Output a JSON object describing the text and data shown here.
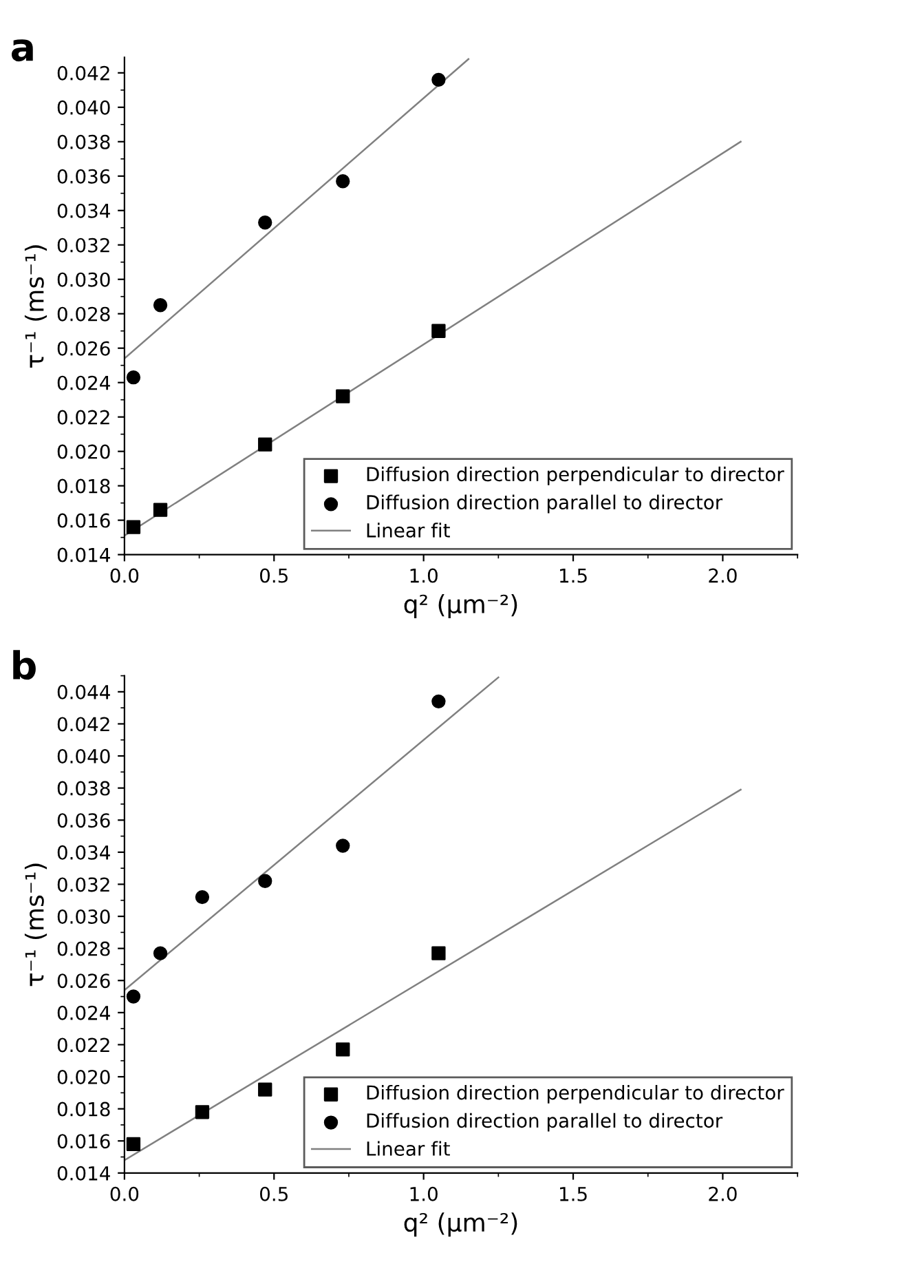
{
  "chart_data": [
    {
      "type": "scatter",
      "title": "a",
      "xlabel": "q² (μm⁻²)",
      "ylabel": "τ⁻¹ (ms⁻¹)",
      "xlim": [
        0,
        2.25
      ],
      "ylim": [
        0.014,
        0.0429
      ],
      "xticks": [
        {
          "value": 0,
          "label": "0.0"
        },
        {
          "value": 0.5,
          "label": "0.5"
        },
        {
          "value": 1,
          "label": "1.0"
        },
        {
          "value": 1.5,
          "label": "1.5"
        },
        {
          "value": 2,
          "label": "2.0"
        }
      ],
      "yticks": [
        {
          "value": 0.014,
          "label": "0.014"
        },
        {
          "value": 0.016,
          "label": "0.016"
        },
        {
          "value": 0.018,
          "label": "0.018"
        },
        {
          "value": 0.02,
          "label": "0.020"
        },
        {
          "value": 0.022,
          "label": "0.022"
        },
        {
          "value": 0.024,
          "label": "0.024"
        },
        {
          "value": 0.026,
          "label": "0.026"
        },
        {
          "value": 0.028,
          "label": "0.028"
        },
        {
          "value": 0.03,
          "label": "0.030"
        },
        {
          "value": 0.032,
          "label": "0.032"
        },
        {
          "value": 0.034,
          "label": "0.034"
        },
        {
          "value": 0.036,
          "label": "0.036"
        },
        {
          "value": 0.038,
          "label": "0.038"
        },
        {
          "value": 0.04,
          "label": "0.040"
        },
        {
          "value": 0.042,
          "label": "0.042"
        }
      ],
      "grid": false,
      "legend": "bottom right",
      "series": [
        {
          "name": "Diffusion direction perpendicular to director",
          "color": "#000000",
          "marker": "square",
          "x": [
            0.03,
            0.12,
            0.47,
            0.73,
            1.05
          ],
          "values": [
            0.0156,
            0.0166,
            0.0204,
            0.0232,
            0.027
          ]
        },
        {
          "name": "Diffusion direction parallel to director",
          "color": "#000000",
          "marker": "circle",
          "x": [
            0.03,
            0.12,
            0.47,
            0.73,
            1.05
          ],
          "values": [
            0.0243,
            0.0285,
            0.0333,
            0.0357,
            0.0416
          ]
        },
        {
          "name": "Linear fit",
          "type": "line",
          "color": "#808080",
          "marker": "none",
          "line_style": "solid",
          "x": [
            0,
            2.06
          ],
          "values": [
            0.0151,
            0.038
          ]
        },
        {
          "type": "line",
          "color": "#808080",
          "marker": "none",
          "line_style": "solid",
          "x": [
            0,
            1.15
          ],
          "values": [
            0.0254,
            0.0428
          ]
        }
      ]
    },
    {
      "type": "scatter",
      "title": "b",
      "xlabel": "q² (μm⁻²)",
      "ylabel": "τ⁻¹ (ms⁻¹)",
      "xlim": [
        0,
        2.25
      ],
      "ylim": [
        0.014,
        0.045
      ],
      "xticks": [
        {
          "value": 0,
          "label": "0.0"
        },
        {
          "value": 0.5,
          "label": "0.5"
        },
        {
          "value": 1,
          "label": "1.0"
        },
        {
          "value": 1.5,
          "label": "1.5"
        },
        {
          "value": 2,
          "label": "2.0"
        }
      ],
      "yticks": [
        {
          "value": 0.014,
          "label": "0.014"
        },
        {
          "value": 0.016,
          "label": "0.016"
        },
        {
          "value": 0.018,
          "label": "0.018"
        },
        {
          "value": 0.02,
          "label": "0.020"
        },
        {
          "value": 0.022,
          "label": "0.022"
        },
        {
          "value": 0.024,
          "label": "0.024"
        },
        {
          "value": 0.026,
          "label": "0.026"
        },
        {
          "value": 0.028,
          "label": "0.028"
        },
        {
          "value": 0.03,
          "label": "0.030"
        },
        {
          "value": 0.032,
          "label": "0.032"
        },
        {
          "value": 0.034,
          "label": "0.034"
        },
        {
          "value": 0.036,
          "label": "0.036"
        },
        {
          "value": 0.038,
          "label": "0.038"
        },
        {
          "value": 0.04,
          "label": "0.040"
        },
        {
          "value": 0.042,
          "label": "0.042"
        },
        {
          "value": 0.044,
          "label": "0.044"
        }
      ],
      "grid": false,
      "legend": "bottom right",
      "series": [
        {
          "name": "Diffusion direction perpendicular to director",
          "color": "#000000",
          "marker": "square",
          "x": [
            0.03,
            0.26,
            0.47,
            0.73,
            1.05
          ],
          "values": [
            0.0158,
            0.0178,
            0.0192,
            0.0217,
            0.0277
          ]
        },
        {
          "name": "Diffusion direction parallel to director",
          "color": "#000000",
          "marker": "circle",
          "x": [
            0.03,
            0.12,
            0.26,
            0.47,
            0.73,
            1.05
          ],
          "values": [
            0.025,
            0.0277,
            0.0312,
            0.0322,
            0.0344,
            0.0434
          ]
        },
        {
          "name": "Linear fit",
          "type": "line",
          "color": "#808080",
          "marker": "none",
          "line_style": "solid",
          "x": [
            0,
            2.06
          ],
          "values": [
            0.0148,
            0.0379
          ]
        },
        {
          "type": "line",
          "color": "#808080",
          "marker": "none",
          "line_style": "solid",
          "x": [
            0,
            1.25
          ],
          "values": [
            0.0254,
            0.0449
          ]
        }
      ]
    }
  ]
}
